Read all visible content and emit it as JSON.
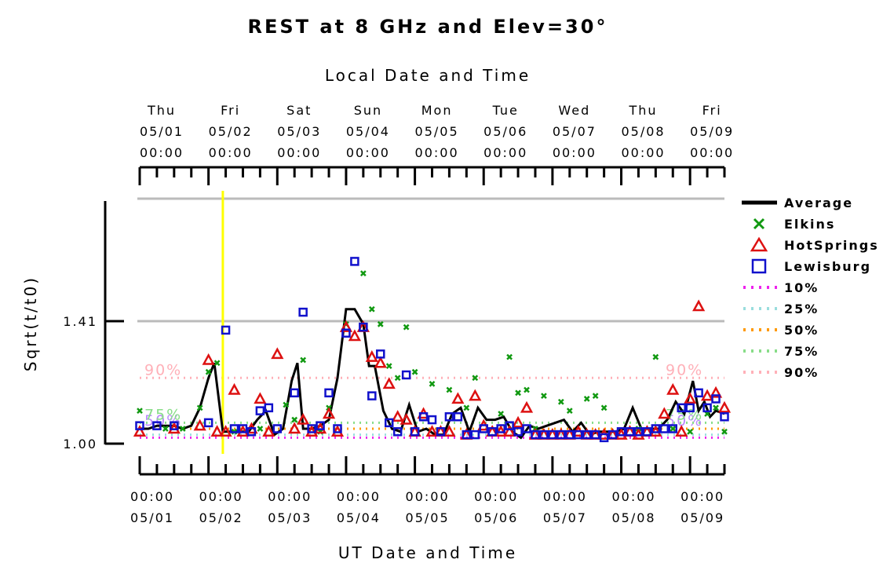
{
  "chart_data": {
    "type": "line",
    "title": "REST at 8 GHz and Elev=30°",
    "top_axis_title": "Local Date and Time",
    "xlabel": "UT Date and Time",
    "ylabel": "Sqrt(t/t0)",
    "x_range": [
      "2025-05-01 00:00",
      "2025-05-09 12:00"
    ],
    "ylim": [
      0.95,
      1.75
    ],
    "y_ticks": [
      {
        "value": 1.0,
        "label": "1.00"
      },
      {
        "value": 1.41,
        "label": "1.41"
      }
    ],
    "top_ticks": [
      {
        "day": "Thu",
        "date": "05/01",
        "time": "00:00"
      },
      {
        "day": "Fri",
        "date": "05/02",
        "time": "00:00"
      },
      {
        "day": "Sat",
        "date": "05/03",
        "time": "00:00"
      },
      {
        "day": "Sun",
        "date": "05/04",
        "time": "00:00"
      },
      {
        "day": "Mon",
        "date": "05/05",
        "time": "00:00"
      },
      {
        "day": "Tue",
        "date": "05/06",
        "time": "00:00"
      },
      {
        "day": "Wed",
        "date": "05/07",
        "time": "00:00"
      },
      {
        "day": "Thu",
        "date": "05/08",
        "time": "00:00"
      },
      {
        "day": "Fri",
        "date": "05/09",
        "time": "00:00"
      }
    ],
    "bottom_ticks": [
      {
        "time": "00:00",
        "date": "05/01"
      },
      {
        "time": "00:00",
        "date": "05/02"
      },
      {
        "time": "00:00",
        "date": "05/03"
      },
      {
        "time": "00:00",
        "date": "05/04"
      },
      {
        "time": "00:00",
        "date": "05/05"
      },
      {
        "time": "00:00",
        "date": "05/06"
      },
      {
        "time": "00:00",
        "date": "05/07"
      },
      {
        "time": "00:00",
        "date": "05/08"
      },
      {
        "time": "00:00",
        "date": "05/09"
      }
    ],
    "grid": "horizontal",
    "current_time_marker": {
      "x": "2025-05-02 05:00",
      "color": "#ffff00"
    },
    "percentile_lines": [
      {
        "name": "10%",
        "value": 1.02,
        "color": "#ee22ee",
        "label": ""
      },
      {
        "name": "25%",
        "value": 1.03,
        "color": "#99dddd",
        "label": ""
      },
      {
        "name": "50%",
        "value": 1.05,
        "color": "#ff9900",
        "label": "50%",
        "label_color": "#bb88ff"
      },
      {
        "name": "75%",
        "value": 1.07,
        "color": "#88dd88",
        "label": "75%",
        "label_color": "#88dd88"
      },
      {
        "name": "90%",
        "value": 1.22,
        "color": "#ffb0b8",
        "label": "90%",
        "label_color": "#ffb0b8"
      }
    ],
    "series": [
      {
        "name": "Average",
        "kind": "line",
        "color": "#000000",
        "x": [
          "2025-05-01 00:00",
          "2025-05-01 03:00",
          "2025-05-01 06:00",
          "2025-05-01 09:00",
          "2025-05-01 12:00",
          "2025-05-01 15:00",
          "2025-05-01 18:00",
          "2025-05-01 21:00",
          "2025-05-02 00:00",
          "2025-05-02 02:00",
          "2025-05-02 05:00",
          "2025-05-02 08:00",
          "2025-05-02 11:00",
          "2025-05-02 14:00",
          "2025-05-02 17:00",
          "2025-05-02 20:00",
          "2025-05-02 23:00",
          "2025-05-03 02:00",
          "2025-05-03 05:00",
          "2025-05-03 07:00",
          "2025-05-03 09:00",
          "2025-05-03 12:00",
          "2025-05-03 15:00",
          "2025-05-03 18:00",
          "2025-05-03 21:00",
          "2025-05-04 00:00",
          "2025-05-04 03:00",
          "2025-05-04 06:00",
          "2025-05-04 08:00",
          "2025-05-04 10:00",
          "2025-05-04 13:00",
          "2025-05-04 16:00",
          "2025-05-04 19:00",
          "2025-05-04 22:00",
          "2025-05-05 01:00",
          "2025-05-05 04:00",
          "2025-05-05 07:00",
          "2025-05-05 10:00",
          "2025-05-05 13:00",
          "2025-05-05 16:00",
          "2025-05-05 19:00",
          "2025-05-05 22:00",
          "2025-05-06 01:00",
          "2025-05-06 04:00",
          "2025-05-06 07:00",
          "2025-05-06 10:00",
          "2025-05-06 13:00",
          "2025-05-06 16:00",
          "2025-05-06 19:00",
          "2025-05-06 22:00",
          "2025-05-07 01:00",
          "2025-05-07 04:00",
          "2025-05-07 07:00",
          "2025-05-07 10:00",
          "2025-05-07 13:00",
          "2025-05-07 16:00",
          "2025-05-07 19:00",
          "2025-05-07 22:00",
          "2025-05-08 01:00",
          "2025-05-08 04:00",
          "2025-05-08 07:00",
          "2025-05-08 10:00",
          "2025-05-08 13:00",
          "2025-05-08 16:00",
          "2025-05-08 19:00",
          "2025-05-08 22:00",
          "2025-05-09 01:00",
          "2025-05-09 03:00",
          "2025-05-09 05:00",
          "2025-05-09 07:00",
          "2025-05-09 09:00",
          "2025-05-09 12:00"
        ],
        "y": [
          1.05,
          1.05,
          1.06,
          1.06,
          1.06,
          1.05,
          1.06,
          1.12,
          1.22,
          1.27,
          1.04,
          1.04,
          1.04,
          1.04,
          1.08,
          1.11,
          1.03,
          1.05,
          1.21,
          1.27,
          1.05,
          1.05,
          1.06,
          1.08,
          1.22,
          1.45,
          1.45,
          1.4,
          1.26,
          1.26,
          1.11,
          1.05,
          1.04,
          1.13,
          1.04,
          1.05,
          1.03,
          1.03,
          1.1,
          1.12,
          1.04,
          1.12,
          1.08,
          1.08,
          1.09,
          1.04,
          1.02,
          1.06,
          1.05,
          1.06,
          1.07,
          1.08,
          1.04,
          1.07,
          1.03,
          1.04,
          1.04,
          1.04,
          1.05,
          1.12,
          1.05,
          1.05,
          1.05,
          1.08,
          1.14,
          1.1,
          1.21,
          1.11,
          1.14,
          1.09,
          1.11,
          1.1
        ]
      },
      {
        "name": "Elkins",
        "kind": "x",
        "color": "#119911",
        "x": [
          "2025-05-01 00:00",
          "2025-05-01 09:00",
          "2025-05-01 15:00",
          "2025-05-01 21:00",
          "2025-05-02 00:00",
          "2025-05-02 03:00",
          "2025-05-02 09:00",
          "2025-05-02 18:00",
          "2025-05-03 03:00",
          "2025-05-03 09:00",
          "2025-05-03 06:00",
          "2025-05-03 15:00",
          "2025-05-03 18:00",
          "2025-05-04 00:00",
          "2025-05-04 06:00",
          "2025-05-04 09:00",
          "2025-05-04 12:00",
          "2025-05-04 15:00",
          "2025-05-04 18:00",
          "2025-05-04 21:00",
          "2025-05-05 00:00",
          "2025-05-05 06:00",
          "2025-05-05 12:00",
          "2025-05-05 18:00",
          "2025-05-05 21:00",
          "2025-05-06 06:00",
          "2025-05-06 09:00",
          "2025-05-06 12:00",
          "2025-05-06 15:00",
          "2025-05-06 18:00",
          "2025-05-06 21:00",
          "2025-05-07 03:00",
          "2025-05-07 06:00",
          "2025-05-07 12:00",
          "2025-05-07 15:00",
          "2025-05-07 18:00",
          "2025-05-08 06:00",
          "2025-05-08 12:00",
          "2025-05-08 18:00",
          "2025-05-09 00:00",
          "2025-05-09 06:00",
          "2025-05-09 09:00",
          "2025-05-09 12:00"
        ],
        "y": [
          1.11,
          1.05,
          1.05,
          1.12,
          1.24,
          1.27,
          1.04,
          1.05,
          1.13,
          1.28,
          1.08,
          1.04,
          1.12,
          1.4,
          1.57,
          1.45,
          1.4,
          1.26,
          1.22,
          1.39,
          1.24,
          1.2,
          1.18,
          1.12,
          1.22,
          1.1,
          1.29,
          1.17,
          1.18,
          1.05,
          1.16,
          1.14,
          1.11,
          1.15,
          1.16,
          1.12,
          1.05,
          1.29,
          1.05,
          1.04,
          1.1,
          1.12,
          1.04
        ]
      },
      {
        "name": "HotSprings",
        "kind": "triangle",
        "color": "#dd1111",
        "x": [
          "2025-05-01 00:00",
          "2025-05-01 12:00",
          "2025-05-01 21:00",
          "2025-05-02 00:00",
          "2025-05-02 03:00",
          "2025-05-02 06:00",
          "2025-05-02 09:00",
          "2025-05-02 12:00",
          "2025-05-02 15:00",
          "2025-05-02 18:00",
          "2025-05-02 21:00",
          "2025-05-03 00:00",
          "2025-05-03 06:00",
          "2025-05-03 09:00",
          "2025-05-03 12:00",
          "2025-05-03 15:00",
          "2025-05-03 18:00",
          "2025-05-03 21:00",
          "2025-05-04 00:00",
          "2025-05-04 03:00",
          "2025-05-04 06:00",
          "2025-05-04 09:00",
          "2025-05-04 12:00",
          "2025-05-04 15:00",
          "2025-05-04 18:00",
          "2025-05-04 21:00",
          "2025-05-05 00:00",
          "2025-05-05 03:00",
          "2025-05-05 06:00",
          "2025-05-05 09:00",
          "2025-05-05 12:00",
          "2025-05-05 15:00",
          "2025-05-05 18:00",
          "2025-05-05 21:00",
          "2025-05-06 00:00",
          "2025-05-06 03:00",
          "2025-05-06 06:00",
          "2025-05-06 09:00",
          "2025-05-06 12:00",
          "2025-05-06 15:00",
          "2025-05-06 18:00",
          "2025-05-06 21:00",
          "2025-05-07 00:00",
          "2025-05-07 03:00",
          "2025-05-07 06:00",
          "2025-05-07 09:00",
          "2025-05-07 12:00",
          "2025-05-07 15:00",
          "2025-05-07 18:00",
          "2025-05-07 21:00",
          "2025-05-08 00:00",
          "2025-05-08 03:00",
          "2025-05-08 06:00",
          "2025-05-08 09:00",
          "2025-05-08 12:00",
          "2025-05-08 15:00",
          "2025-05-08 18:00",
          "2025-05-08 21:00",
          "2025-05-09 00:00",
          "2025-05-09 03:00",
          "2025-05-09 06:00",
          "2025-05-09 09:00",
          "2025-05-09 12:00"
        ],
        "y": [
          1.04,
          1.05,
          1.06,
          1.28,
          1.04,
          1.04,
          1.18,
          1.04,
          1.05,
          1.15,
          1.04,
          1.3,
          1.05,
          1.08,
          1.04,
          1.05,
          1.1,
          1.04,
          1.39,
          1.36,
          1.39,
          1.29,
          1.27,
          1.2,
          1.09,
          1.08,
          1.04,
          1.1,
          1.04,
          1.04,
          1.04,
          1.15,
          1.03,
          1.16,
          1.06,
          1.04,
          1.04,
          1.04,
          1.07,
          1.12,
          1.03,
          1.03,
          1.03,
          1.03,
          1.03,
          1.04,
          1.03,
          1.03,
          1.03,
          1.03,
          1.03,
          1.04,
          1.03,
          1.04,
          1.04,
          1.1,
          1.18,
          1.04,
          1.15,
          1.46,
          1.16,
          1.17,
          1.12
        ]
      },
      {
        "name": "Lewisburg",
        "kind": "square",
        "color": "#1111cc",
        "x": [
          "2025-05-01 00:00",
          "2025-05-01 06:00",
          "2025-05-01 12:00",
          "2025-05-02 00:00",
          "2025-05-02 06:00",
          "2025-05-02 09:00",
          "2025-05-02 12:00",
          "2025-05-02 15:00",
          "2025-05-02 18:00",
          "2025-05-02 21:00",
          "2025-05-03 00:00",
          "2025-05-03 06:00",
          "2025-05-03 09:00",
          "2025-05-03 12:00",
          "2025-05-03 15:00",
          "2025-05-03 18:00",
          "2025-05-03 21:00",
          "2025-05-04 00:00",
          "2025-05-04 03:00",
          "2025-05-04 06:00",
          "2025-05-04 09:00",
          "2025-05-04 12:00",
          "2025-05-04 15:00",
          "2025-05-04 18:00",
          "2025-05-04 21:00",
          "2025-05-05 00:00",
          "2025-05-05 03:00",
          "2025-05-05 06:00",
          "2025-05-05 09:00",
          "2025-05-05 12:00",
          "2025-05-05 15:00",
          "2025-05-05 18:00",
          "2025-05-05 21:00",
          "2025-05-06 00:00",
          "2025-05-06 03:00",
          "2025-05-06 06:00",
          "2025-05-06 09:00",
          "2025-05-06 12:00",
          "2025-05-06 15:00",
          "2025-05-06 18:00",
          "2025-05-06 21:00",
          "2025-05-07 00:00",
          "2025-05-07 03:00",
          "2025-05-07 06:00",
          "2025-05-07 09:00",
          "2025-05-07 12:00",
          "2025-05-07 15:00",
          "2025-05-07 18:00",
          "2025-05-07 21:00",
          "2025-05-08 00:00",
          "2025-05-08 03:00",
          "2025-05-08 06:00",
          "2025-05-08 09:00",
          "2025-05-08 12:00",
          "2025-05-08 15:00",
          "2025-05-08 18:00",
          "2025-05-08 21:00",
          "2025-05-09 00:00",
          "2025-05-09 03:00",
          "2025-05-09 06:00",
          "2025-05-09 09:00",
          "2025-05-09 12:00"
        ],
        "y": [
          1.06,
          1.06,
          1.06,
          1.07,
          1.38,
          1.05,
          1.05,
          1.04,
          1.11,
          1.12,
          1.05,
          1.17,
          1.44,
          1.05,
          1.06,
          1.17,
          1.05,
          1.37,
          1.61,
          1.39,
          1.16,
          1.3,
          1.07,
          1.04,
          1.23,
          1.04,
          1.09,
          1.08,
          1.04,
          1.09,
          1.09,
          1.03,
          1.03,
          1.05,
          1.04,
          1.05,
          1.06,
          1.04,
          1.05,
          1.03,
          1.03,
          1.03,
          1.03,
          1.03,
          1.03,
          1.03,
          1.03,
          1.02,
          1.03,
          1.04,
          1.04,
          1.04,
          1.04,
          1.05,
          1.05,
          1.05,
          1.12,
          1.12,
          1.17,
          1.12,
          1.15,
          1.09
        ]
      }
    ]
  }
}
